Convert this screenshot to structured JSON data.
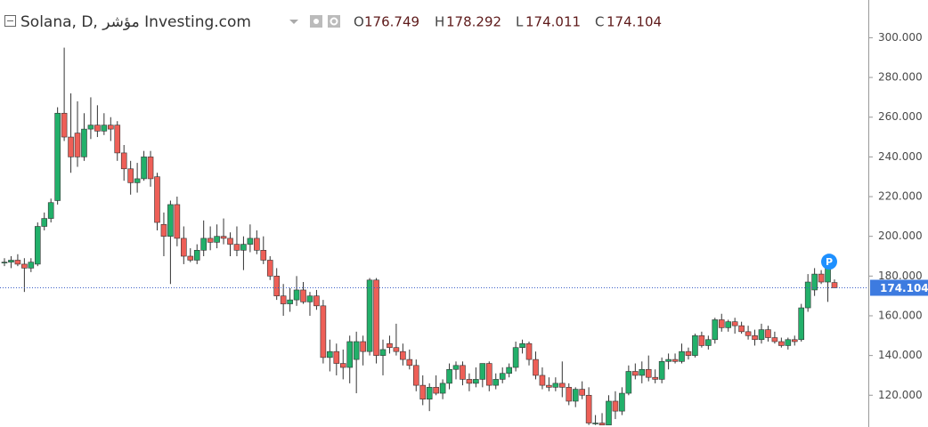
{
  "chart_data": {
    "type": "candlestick",
    "title": "Solana, D, مؤشر Investing.com",
    "ohlc_labels": [
      "O",
      "H",
      "L",
      "C"
    ],
    "marker_label": "P",
    "last_price": 174.104,
    "open": [
      187,
      187,
      188,
      186,
      184,
      186,
      205,
      209,
      218,
      262,
      250,
      252,
      240,
      254,
      256,
      253,
      256,
      256,
      242,
      234,
      227,
      229,
      240,
      230,
      206,
      200,
      216,
      199,
      190,
      188,
      193,
      199,
      197,
      200,
      199,
      196,
      193,
      196,
      199,
      193,
      188,
      180,
      170,
      166,
      168,
      173,
      167,
      170,
      165,
      139,
      142,
      136,
      134,
      138,
      147,
      142,
      178,
      140,
      146,
      144,
      142,
      138,
      135,
      125,
      118,
      124,
      121,
      126,
      133,
      135,
      128,
      126,
      128,
      136,
      125,
      128,
      131,
      134,
      144,
      146,
      138,
      130,
      125,
      124,
      126,
      124,
      117,
      123,
      120,
      106,
      106,
      105,
      117,
      112,
      121,
      132,
      130,
      133,
      129,
      128,
      137,
      138,
      137,
      142,
      140,
      150,
      145,
      148,
      158,
      154,
      157,
      155,
      152,
      150,
      148,
      153,
      149,
      147,
      145,
      148,
      148,
      164,
      173,
      181,
      177,
      176.749
    ],
    "high": [
      189,
      190,
      191,
      189,
      189,
      207,
      212,
      219,
      265,
      295,
      272,
      268,
      262,
      270,
      266,
      262,
      260,
      258,
      246,
      238,
      237,
      243,
      243,
      232,
      212,
      218,
      220,
      205,
      194,
      196,
      208,
      205,
      206,
      209,
      202,
      205,
      200,
      206,
      203,
      200,
      190,
      184,
      176,
      174,
      180,
      177,
      172,
      173,
      168,
      148,
      146,
      143,
      150,
      152,
      150,
      179,
      179,
      148,
      150,
      156,
      146,
      143,
      138,
      130,
      126,
      130,
      128,
      136,
      137,
      137,
      131,
      134,
      136,
      137,
      131,
      134,
      136,
      147,
      148,
      147,
      142,
      134,
      129,
      129,
      137,
      126,
      124,
      127,
      124,
      110,
      111,
      120,
      122,
      124,
      135,
      136,
      137,
      140,
      133,
      139,
      141,
      141,
      146,
      144,
      151,
      152,
      150,
      159,
      161,
      158,
      159,
      157,
      155,
      153,
      156,
      155,
      152,
      149,
      149,
      150,
      166,
      181,
      184,
      183,
      185,
      178.292
    ],
    "low": [
      185,
      184,
      185,
      172,
      182,
      185,
      203,
      207,
      216,
      248,
      232,
      235,
      238,
      249,
      250,
      251,
      248,
      238,
      228,
      221,
      222,
      228,
      225,
      203,
      190,
      176,
      195,
      186,
      187,
      186,
      190,
      193,
      194,
      196,
      190,
      190,
      183,
      192,
      191,
      186,
      178,
      168,
      160,
      162,
      165,
      166,
      160,
      163,
      136,
      132,
      130,
      128,
      126,
      121,
      135,
      140,
      136,
      130,
      141,
      140,
      135,
      133,
      122,
      115,
      112,
      120,
      118,
      123,
      128,
      125,
      122,
      124,
      124,
      122,
      123,
      126,
      129,
      132,
      141,
      135,
      128,
      123,
      122,
      122,
      119,
      115,
      114,
      118,
      105,
      105,
      105,
      105,
      108,
      110,
      120,
      128,
      126,
      127,
      126,
      126,
      133,
      136,
      136,
      138,
      139,
      144,
      143,
      146,
      152,
      152,
      151,
      151,
      148,
      145,
      146,
      147,
      146,
      144,
      143,
      145,
      147,
      162,
      170,
      176,
      167,
      174.011
    ],
    "close": [
      187,
      188,
      186,
      184,
      187,
      205,
      209,
      217,
      262,
      250,
      240,
      240,
      254,
      256,
      253,
      256,
      254,
      242,
      234,
      227,
      229,
      240,
      229,
      207,
      200,
      216,
      199,
      190,
      188,
      193,
      199,
      197,
      200,
      199,
      196,
      193,
      196,
      199,
      193,
      188,
      180,
      170,
      166,
      168,
      173,
      167,
      170,
      165,
      139,
      142,
      136,
      134,
      147,
      147,
      142,
      178,
      140,
      143,
      144,
      142,
      138,
      135,
      125,
      118,
      124,
      121,
      126,
      133,
      135,
      128,
      126,
      128,
      136,
      125,
      128,
      131,
      134,
      144,
      146,
      138,
      130,
      125,
      124,
      126,
      124,
      117,
      123,
      120,
      106,
      106,
      105,
      117,
      112,
      121,
      132,
      130,
      133,
      129,
      128,
      137,
      138,
      137,
      142,
      140,
      150,
      145,
      148,
      158,
      154,
      157,
      155,
      152,
      150,
      148,
      153,
      149,
      147,
      145,
      148,
      147,
      164,
      177,
      181,
      177,
      184,
      174.104
    ],
    "up_color": "#22b06a",
    "down_color": "#ee5f57",
    "ylim": [
      104,
      319
    ],
    "yticks": [
      {
        "value": 120,
        "label": "120.000"
      },
      {
        "value": 140,
        "label": "140.000"
      },
      {
        "value": 160,
        "label": "160.000"
      },
      {
        "value": 180,
        "label": "180.000"
      },
      {
        "value": 200,
        "label": "200.000"
      },
      {
        "value": 220,
        "label": "220.000"
      },
      {
        "value": 240,
        "label": "240.000"
      },
      {
        "value": 260,
        "label": "260.000"
      },
      {
        "value": 280,
        "label": "280.000"
      },
      {
        "value": 300,
        "label": "300.000"
      }
    ]
  }
}
